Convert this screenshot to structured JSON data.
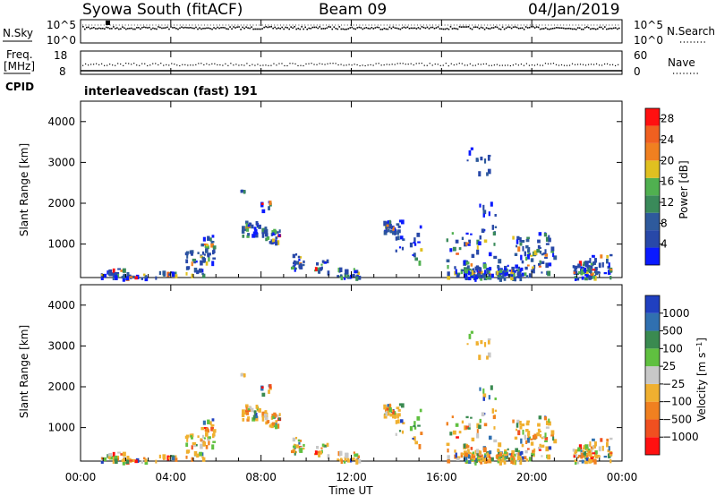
{
  "header": {
    "station": "Syowa South (fitACF)",
    "beam": "Beam 09",
    "date": "04/Jan/2019",
    "scan_label": "interleavedscan (fast) 191"
  },
  "strips": {
    "nsky_label": "N.Sky",
    "nsearch_label": "N.Search",
    "noise_ticks": [
      "10^5",
      "10^0"
    ],
    "freq_label": "Freq.",
    "freq_unit": "[MHz]",
    "freq_ticks": [
      "18",
      "8"
    ],
    "nave_label": "Nave",
    "nave_ticks": [
      "60",
      "0"
    ],
    "cpid_label": "CPID"
  },
  "colors": {
    "power_scale": [
      "#0a1aff",
      "#2848a8",
      "#2e5a9c",
      "#3a8a5a",
      "#50b050",
      "#e0c020",
      "#f08020",
      "#f06020",
      "#ff1010"
    ],
    "velocity_scale": [
      "#2040c0",
      "#3070b0",
      "#3a8a50",
      "#60c040",
      "#c8c8c8",
      "#f0b030",
      "#f08020",
      "#f05020",
      "#ff1010"
    ]
  },
  "chart_data": [
    {
      "type": "heatmap",
      "name": "power",
      "ylabel": "Slant Range [km]",
      "xlabel": "Time UT",
      "ylim": [
        180,
        4500
      ],
      "xlim_hours": [
        0,
        24
      ],
      "yticks": [
        "1000",
        "2000",
        "3000",
        "4000"
      ],
      "xticks": [
        "00:00",
        "04:00",
        "08:00",
        "12:00",
        "16:00",
        "20:00",
        "00:00"
      ],
      "colorbar": {
        "label": "Power [dB]",
        "ticks": [
          "4",
          "8",
          "12",
          "16",
          "20",
          "24",
          "28"
        ],
        "range": [
          0,
          30
        ]
      }
    },
    {
      "type": "heatmap",
      "name": "velocity",
      "ylabel": "Slant Range [km]",
      "xlabel": "Time UT",
      "ylim": [
        180,
        4500
      ],
      "xlim_hours": [
        0,
        24
      ],
      "yticks": [
        "1000",
        "2000",
        "3000",
        "4000"
      ],
      "xticks": [
        "00:00",
        "04:00",
        "08:00",
        "12:00",
        "16:00",
        "20:00",
        "00:00"
      ],
      "colorbar": {
        "label": "Velocity [m s^-1]",
        "ticks": [
          "1000",
          "500",
          "100",
          "25",
          "−25",
          "−100",
          "−500",
          "−1000"
        ]
      }
    }
  ]
}
